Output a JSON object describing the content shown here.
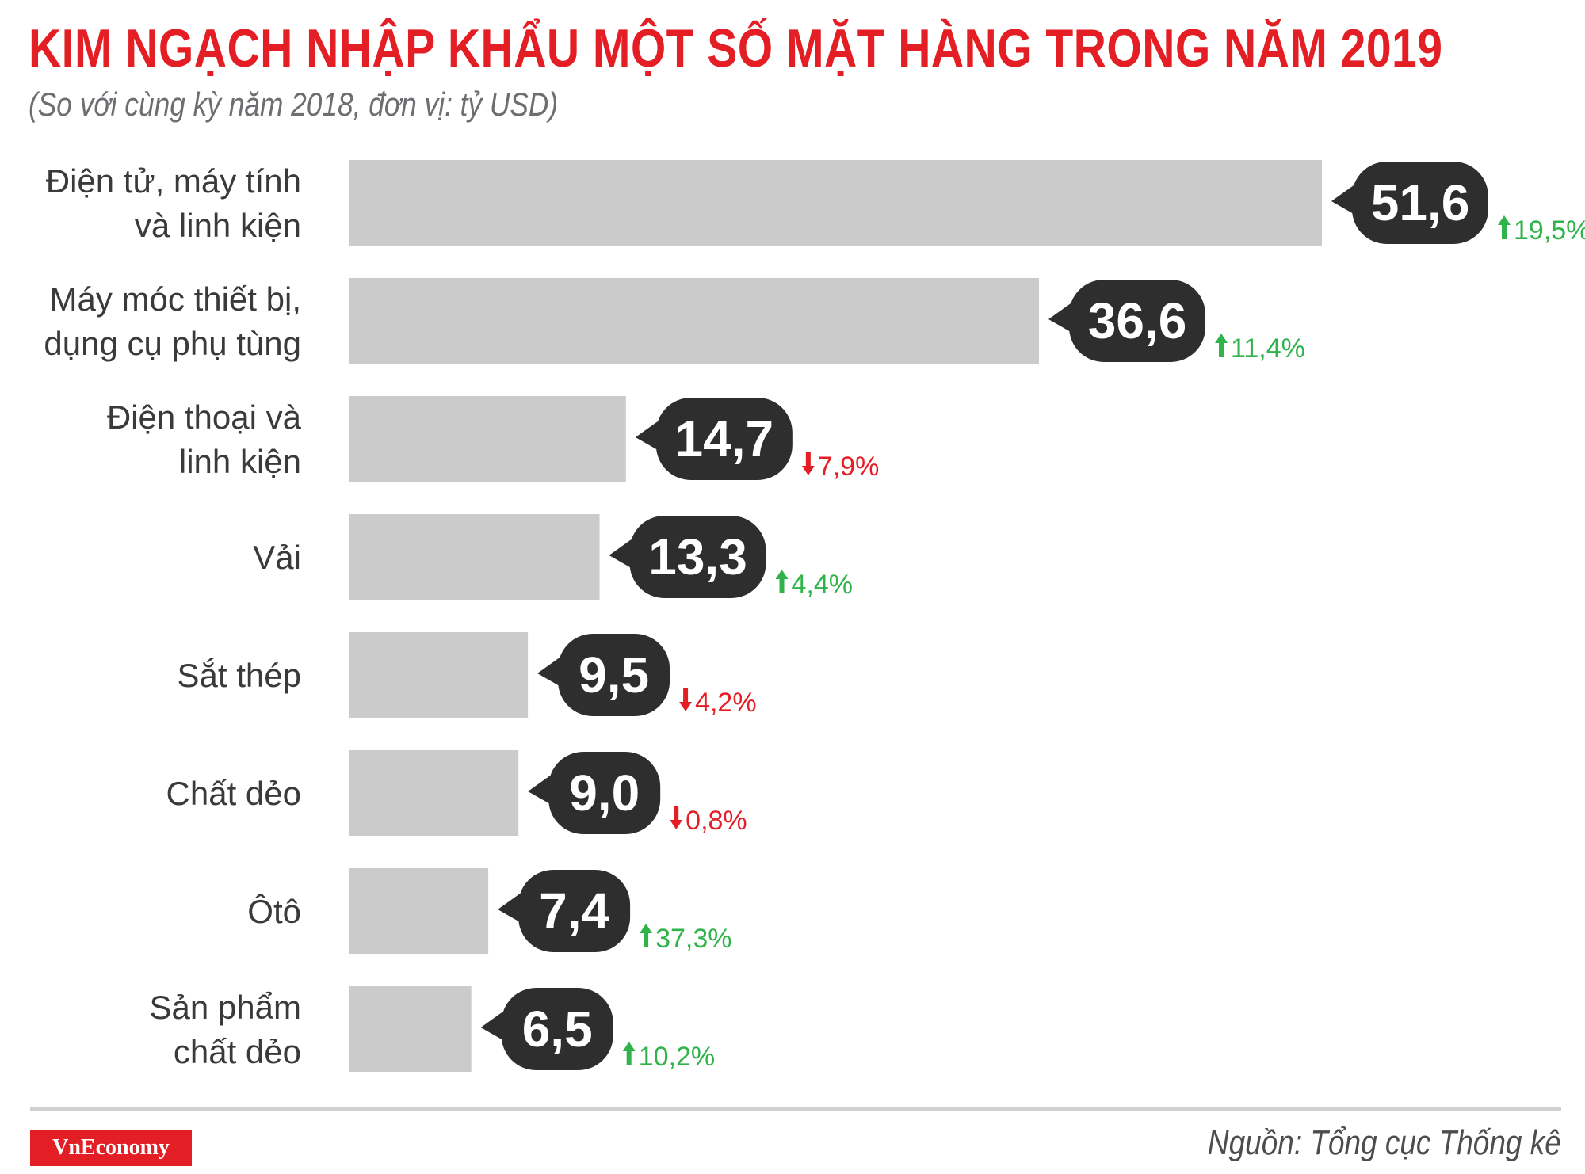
{
  "header": {
    "title": "KIM NGẠCH NHẬP KHẨU MỘT SỐ MẶT HÀNG TRONG NĂM 2019",
    "subtitle": "(So với cùng kỳ năm 2018, đơn vị: tỷ USD)"
  },
  "colors": {
    "title": "#e31e24",
    "bar": "#cccbcb",
    "bubble": "#2e2e2e",
    "up": "#2fb34a",
    "down": "#e31e24"
  },
  "chart_data": {
    "type": "bar",
    "orientation": "horizontal",
    "categories": [
      [
        "Điện tử, máy tính",
        "và linh kiện"
      ],
      [
        "Máy móc thiết bị,",
        "dụng cụ phụ tùng"
      ],
      [
        "Điện thoại và",
        "linh kiện"
      ],
      [
        "Vải"
      ],
      [
        "Sắt thép"
      ],
      [
        "Chất dẻo"
      ],
      [
        "Ôtô"
      ],
      [
        "Sản phẩm",
        "chất dẻo"
      ]
    ],
    "values": [
      51.6,
      36.6,
      14.7,
      13.3,
      9.5,
      9.0,
      7.4,
      6.5
    ],
    "value_labels": [
      "51,6",
      "36,6",
      "14,7",
      "13,3",
      "9,5",
      "9,0",
      "7,4",
      "6,5"
    ],
    "changes": [
      {
        "label": "19,5%",
        "direction": "up"
      },
      {
        "label": "11,4%",
        "direction": "up"
      },
      {
        "label": "7,9%",
        "direction": "down"
      },
      {
        "label": "4,4%",
        "direction": "up"
      },
      {
        "label": "4,2%",
        "direction": "down"
      },
      {
        "label": "0,8%",
        "direction": "down"
      },
      {
        "label": "37,3%",
        "direction": "up"
      },
      {
        "label": "10,2%",
        "direction": "up"
      }
    ],
    "xlim": [
      0,
      51.6
    ],
    "grid": false,
    "legend": "none"
  },
  "footer": {
    "brand": "VnEconomy",
    "source": "Nguồn: Tổng cục Thống kê"
  }
}
